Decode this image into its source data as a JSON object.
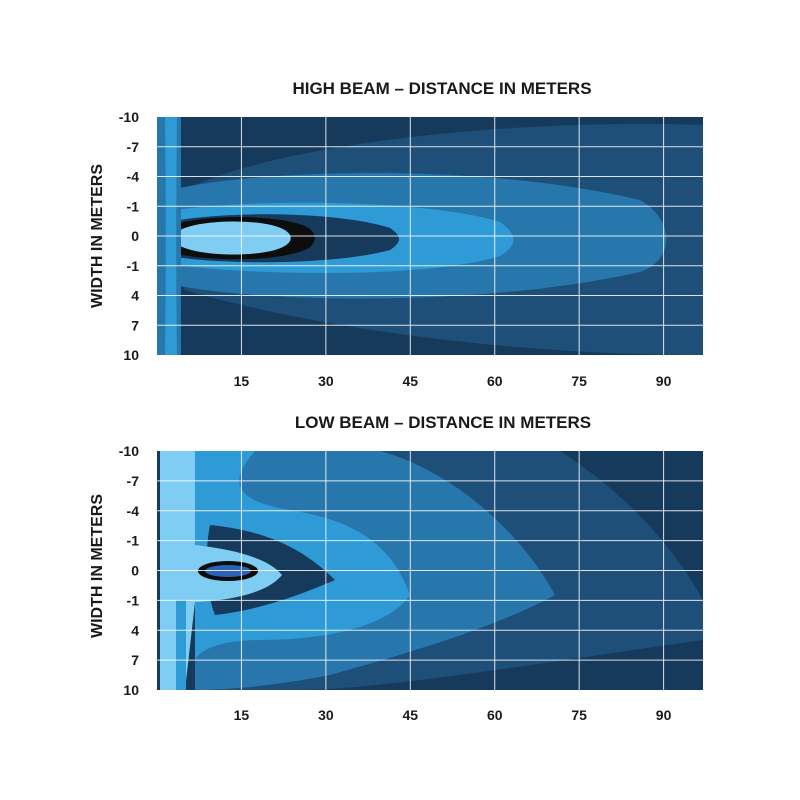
{
  "chart_data": [
    {
      "type": "heatmap",
      "title": "HIGH BEAM –  DISTANCE IN METERS",
      "ylabel": "WIDTH IN METERS",
      "xlabel": "",
      "x_ticks": [
        "15",
        "30",
        "45",
        "60",
        "75",
        "90"
      ],
      "y_ticks": [
        "-10",
        "-7",
        "-4",
        "-1",
        "0",
        "-1",
        "4",
        "7",
        "10"
      ],
      "xlim": [
        0,
        97
      ],
      "ylim": [
        -10,
        10
      ],
      "grid": true,
      "colors": [
        "#163a5b",
        "#1d4f78",
        "#2777ad",
        "#2e9ad6",
        "#7fcdf2",
        "#0d0d0d"
      ],
      "zones": [
        {
          "level": "outer",
          "max_distance": 97
        },
        {
          "level": "medium",
          "max_distance": 91
        },
        {
          "level": "bright",
          "max_distance": 63
        },
        {
          "level": "very-bright",
          "max_distance": 42
        },
        {
          "level": "hot-spot",
          "max_distance": 28
        }
      ]
    },
    {
      "type": "heatmap",
      "title": "LOW BEAM – DISTANCE IN METERS",
      "ylabel": "WIDTH IN METERS",
      "xlabel": "",
      "x_ticks": [
        "15",
        "30",
        "45",
        "60",
        "75",
        "90"
      ],
      "y_ticks": [
        "-10",
        "-7",
        "-4",
        "-1",
        "0",
        "-1",
        "4",
        "7",
        "10"
      ],
      "xlim": [
        0,
        97
      ],
      "ylim": [
        -10,
        10
      ],
      "grid": true,
      "colors": [
        "#163a5b",
        "#1d4f78",
        "#2777ad",
        "#2e9ad6",
        "#7fcdf2",
        "#2a62b8",
        "#0d0d0d"
      ],
      "zones": [
        {
          "level": "outer",
          "max_distance": 97
        },
        {
          "level": "medium",
          "max_distance": 70
        },
        {
          "level": "bright",
          "max_distance": 45
        },
        {
          "level": "very-bright",
          "max_distance": 32
        },
        {
          "level": "hot-spot",
          "max_distance": 22
        }
      ]
    }
  ]
}
